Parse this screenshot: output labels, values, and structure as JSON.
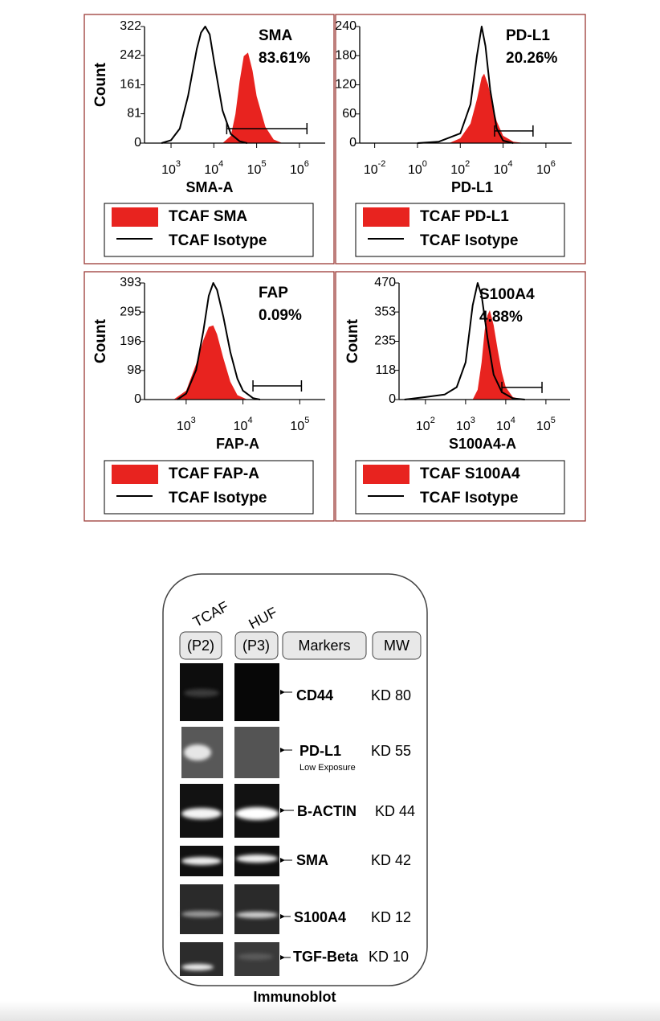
{
  "chart_data": [
    {
      "type": "area",
      "annotation": [
        "SMA",
        "83.61%"
      ],
      "xlabel": "SMA-A",
      "ylabel": "Count",
      "log_x": true,
      "xlim": [
        240,
        4000000
      ],
      "ylim": [
        0,
        322
      ],
      "xticks": [
        {
          "value": 1000,
          "label": "10",
          "exponent": "3"
        },
        {
          "value": 10000,
          "label": "10",
          "exponent": "4"
        },
        {
          "value": 100000,
          "label": "10",
          "exponent": "5"
        },
        {
          "value": 1000000,
          "label": "10",
          "exponent": "6"
        }
      ],
      "yticks": [
        0,
        81,
        161,
        242,
        322
      ],
      "gate": {
        "x": [
          20000,
          1500000
        ],
        "y": 40
      },
      "series": [
        {
          "name": "TCAF SMA",
          "color": "#e8231f",
          "fill": true,
          "x": [
            16000,
            25000,
            32000,
            40000,
            50000,
            63000,
            80000,
            100000,
            160000,
            250000,
            400000
          ],
          "values": [
            0,
            20,
            80,
            170,
            240,
            250,
            200,
            130,
            45,
            10,
            0
          ]
        },
        {
          "name": "TCAF Isotype",
          "color": "#000000",
          "fill": false,
          "x": [
            600,
            1000,
            1600,
            2500,
            4000,
            5000,
            6300,
            8000,
            10000,
            16000,
            25000,
            40000,
            60000
          ],
          "values": [
            0,
            8,
            40,
            130,
            260,
            305,
            322,
            300,
            230,
            90,
            25,
            5,
            0
          ]
        }
      ]
    },
    {
      "type": "area",
      "annotation": [
        "PD-L1",
        "20.26%"
      ],
      "xlabel": "PD-L1",
      "log_x": true,
      "xlim": [
        0.002,
        16000000
      ],
      "ylim": [
        0,
        240
      ],
      "xticks": [
        {
          "value": 0.01,
          "label": "10",
          "exponent": "-2"
        },
        {
          "value": 1,
          "label": "10",
          "exponent": "0"
        },
        {
          "value": 100,
          "label": "10",
          "exponent": "2"
        },
        {
          "value": 10000,
          "label": "10",
          "exponent": "4"
        },
        {
          "value": 1000000,
          "label": "10",
          "exponent": "6"
        }
      ],
      "yticks": [
        0,
        60,
        120,
        180,
        240
      ],
      "gate": {
        "x": [
          4000,
          250000
        ],
        "y": 25
      },
      "series": [
        {
          "name": "TCAF PD-L1",
          "color": "#e8231f",
          "fill": true,
          "x": [
            30,
            100,
            300,
            600,
            1000,
            1300,
            2000,
            3000,
            5000,
            10000,
            30000,
            100000
          ],
          "values": [
            0,
            10,
            40,
            90,
            135,
            143,
            120,
            85,
            45,
            15,
            3,
            0
          ]
        },
        {
          "name": "TCAF Isotype",
          "color": "#000000",
          "fill": false,
          "x": [
            1,
            10,
            100,
            300,
            600,
            1000,
            1500,
            2500,
            5000,
            10000,
            30000
          ],
          "values": [
            0,
            3,
            20,
            80,
            180,
            240,
            200,
            110,
            30,
            5,
            0
          ]
        }
      ]
    },
    {
      "type": "area",
      "annotation": [
        "FAP",
        "0.09%"
      ],
      "xlabel": "FAP-A",
      "ylabel": "Count",
      "log_x": true,
      "xlim": [
        185,
        280000
      ],
      "ylim": [
        0,
        393
      ],
      "xticks": [
        {
          "value": 1000,
          "label": "10",
          "exponent": "3"
        },
        {
          "value": 10000,
          "label": "10",
          "exponent": "4"
        },
        {
          "value": 100000,
          "label": "10",
          "exponent": "5"
        }
      ],
      "yticks": [
        0,
        98,
        196,
        295,
        393
      ],
      "gate": {
        "x": [
          15000,
          107000
        ],
        "y": 46
      },
      "series": [
        {
          "name": "TCAF FAP-A",
          "color": "#e8231f",
          "fill": true,
          "x": [
            600,
            1000,
            1500,
            2000,
            2500,
            3000,
            3500,
            4500,
            6000,
            8000,
            12000
          ],
          "values": [
            0,
            30,
            120,
            200,
            245,
            250,
            220,
            140,
            60,
            15,
            0
          ]
        },
        {
          "name": "TCAF Isotype",
          "color": "#000000",
          "fill": false,
          "x": [
            700,
            1000,
            1500,
            2000,
            2500,
            3000,
            3500,
            4500,
            6000,
            8000,
            10000,
            15000,
            20000
          ],
          "values": [
            0,
            20,
            100,
            230,
            350,
            393,
            370,
            280,
            160,
            70,
            30,
            5,
            0
          ]
        }
      ]
    },
    {
      "type": "area",
      "annotation": [
        "S100A4",
        "4.88%"
      ],
      "xlabel": "S100A4-A",
      "ylabel": "Count",
      "log_x": true,
      "xlim": [
        22,
        400000
      ],
      "ylim": [
        0,
        470
      ],
      "xticks": [
        {
          "value": 100,
          "label": "10",
          "exponent": "2"
        },
        {
          "value": 1000,
          "label": "10",
          "exponent": "3"
        },
        {
          "value": 10000,
          "label": "10",
          "exponent": "4"
        },
        {
          "value": 100000,
          "label": "10",
          "exponent": "5"
        }
      ],
      "yticks": [
        0,
        118,
        235,
        353,
        470
      ],
      "gate": {
        "x": [
          8000,
          80000
        ],
        "y": 49
      },
      "series": [
        {
          "name": "TCAF S100A4",
          "color": "#e8231f",
          "fill": true,
          "x": [
            1500,
            2000,
            2500,
            3000,
            3500,
            4000,
            5000,
            6300,
            8000,
            10000,
            15000,
            25000
          ],
          "values": [
            0,
            40,
            150,
            280,
            340,
            360,
            300,
            200,
            110,
            50,
            10,
            0
          ]
        },
        {
          "name": "TCAF Isotype",
          "color": "#000000",
          "fill": false,
          "x": [
            30,
            100,
            300,
            600,
            1000,
            1500,
            2000,
            2500,
            3500,
            5000,
            8000,
            15000,
            30000
          ],
          "values": [
            0,
            10,
            20,
            50,
            150,
            380,
            470,
            420,
            250,
            100,
            30,
            5,
            0
          ]
        }
      ]
    }
  ],
  "immunoblot": {
    "samples": [
      {
        "group": "TCAF",
        "passage": "(P2)"
      },
      {
        "group": "HUF",
        "passage": "(P3)"
      }
    ],
    "headers": [
      "Markers",
      "MW"
    ],
    "rows": [
      {
        "marker": "CD44",
        "mw": "KD 80"
      },
      {
        "marker": "PD-L1",
        "note": "Low Exposure",
        "mw": "KD 55"
      },
      {
        "marker": "B-ACTIN",
        "mw": "KD 44"
      },
      {
        "marker": "SMA",
        "mw": "KD 42"
      },
      {
        "marker": "S100A4",
        "mw": "KD 12"
      },
      {
        "marker": "TGF-Beta",
        "mw": "KD 10"
      }
    ],
    "caption": "Immunoblot"
  }
}
